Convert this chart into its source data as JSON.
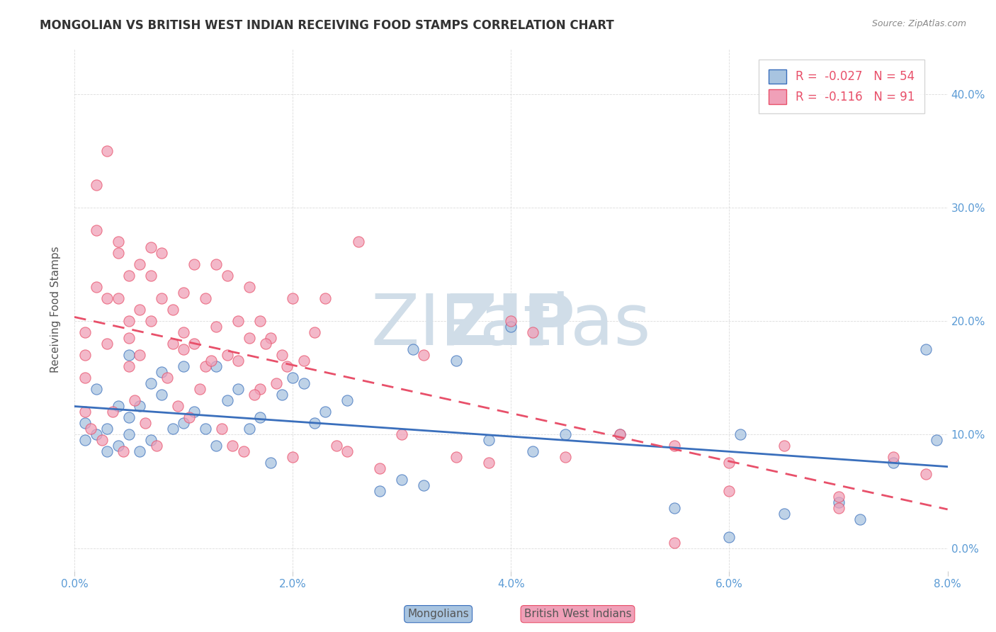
{
  "title": "MONGOLIAN VS BRITISH WEST INDIAN RECEIVING FOOD STAMPS CORRELATION CHART",
  "source": "Source: ZipAtlas.com",
  "xlabel_ticks": [
    "0.0%",
    "2.0%",
    "4.0%",
    "6.0%",
    "8.0%"
  ],
  "xlabel_vals": [
    0.0,
    2.0,
    4.0,
    6.0,
    8.0
  ],
  "ylabel": "Receiving Food Stamps",
  "ylabel_ticks_right": [
    "0.0%",
    "10.0%",
    "20.0%",
    "30.0%",
    "40.0%"
  ],
  "ylabel_vals_right": [
    0.0,
    10.0,
    20.0,
    30.0,
    40.0
  ],
  "xlim": [
    0.0,
    8.0
  ],
  "ylim": [
    -2.0,
    44.0
  ],
  "mongolian_R": -0.027,
  "mongolian_N": 54,
  "bwi_R": -0.116,
  "bwi_N": 91,
  "mongolian_color": "#a8c4e0",
  "bwi_color": "#f0a0b8",
  "mongolian_line_color": "#3a6fbc",
  "bwi_line_color": "#e8506a",
  "grid_color": "#cccccc",
  "title_color": "#333333",
  "axis_label_color": "#5b9bd5",
  "legend_box_color_mongolian": "#a8c4e0",
  "legend_box_color_bwi": "#f0a0b8",
  "watermark_color": "#d0dde8",
  "mongolian_x": [
    0.1,
    0.1,
    0.2,
    0.2,
    0.3,
    0.3,
    0.4,
    0.4,
    0.5,
    0.5,
    0.5,
    0.6,
    0.6,
    0.7,
    0.7,
    0.8,
    0.8,
    0.9,
    1.0,
    1.0,
    1.1,
    1.2,
    1.3,
    1.3,
    1.4,
    1.5,
    1.6,
    1.7,
    1.8,
    1.9,
    2.0,
    2.1,
    2.2,
    2.3,
    2.5,
    2.8,
    3.0,
    3.1,
    3.2,
    3.5,
    3.8,
    4.0,
    4.2,
    4.5,
    5.0,
    5.5,
    6.0,
    6.1,
    6.5,
    7.0,
    7.2,
    7.5,
    7.8,
    7.9
  ],
  "mongolian_y": [
    9.5,
    11.0,
    10.0,
    14.0,
    8.5,
    10.5,
    9.0,
    12.5,
    10.0,
    11.5,
    17.0,
    8.5,
    12.5,
    9.5,
    14.5,
    13.5,
    15.5,
    10.5,
    11.0,
    16.0,
    12.0,
    10.5,
    9.0,
    16.0,
    13.0,
    14.0,
    10.5,
    11.5,
    7.5,
    13.5,
    15.0,
    14.5,
    11.0,
    12.0,
    13.0,
    5.0,
    6.0,
    17.5,
    5.5,
    16.5,
    9.5,
    19.5,
    8.5,
    10.0,
    10.0,
    3.5,
    1.0,
    10.0,
    3.0,
    4.0,
    2.5,
    7.5,
    17.5,
    9.5
  ],
  "bwi_x": [
    0.1,
    0.1,
    0.1,
    0.1,
    0.2,
    0.2,
    0.2,
    0.3,
    0.3,
    0.3,
    0.4,
    0.4,
    0.4,
    0.5,
    0.5,
    0.5,
    0.5,
    0.6,
    0.6,
    0.6,
    0.7,
    0.7,
    0.7,
    0.8,
    0.8,
    0.9,
    0.9,
    1.0,
    1.0,
    1.0,
    1.1,
    1.1,
    1.2,
    1.2,
    1.3,
    1.3,
    1.4,
    1.4,
    1.5,
    1.5,
    1.6,
    1.6,
    1.7,
    1.7,
    1.8,
    1.9,
    2.0,
    2.0,
    2.1,
    2.2,
    2.3,
    2.4,
    2.5,
    2.6,
    2.8,
    3.0,
    3.2,
    3.5,
    3.8,
    4.0,
    4.2,
    4.5,
    5.0,
    5.5,
    5.5,
    6.0,
    6.0,
    6.5,
    7.0,
    7.0,
    7.5,
    7.8,
    0.15,
    0.25,
    0.35,
    0.45,
    0.55,
    0.65,
    0.75,
    0.85,
    0.95,
    1.05,
    1.15,
    1.25,
    1.35,
    1.45,
    1.55,
    1.65,
    1.75,
    1.85,
    1.95
  ],
  "bwi_y": [
    17.0,
    19.0,
    15.0,
    12.0,
    28.0,
    32.0,
    23.0,
    35.0,
    22.0,
    18.0,
    26.0,
    22.0,
    27.0,
    20.0,
    16.0,
    24.0,
    18.5,
    25.0,
    21.0,
    17.0,
    26.5,
    24.0,
    20.0,
    22.0,
    26.0,
    18.0,
    21.0,
    19.0,
    17.5,
    22.5,
    25.0,
    18.0,
    16.0,
    22.0,
    19.5,
    25.0,
    24.0,
    17.0,
    20.0,
    16.5,
    18.5,
    23.0,
    14.0,
    20.0,
    18.5,
    17.0,
    22.0,
    8.0,
    16.5,
    19.0,
    22.0,
    9.0,
    8.5,
    27.0,
    7.0,
    10.0,
    17.0,
    8.0,
    7.5,
    20.0,
    19.0,
    8.0,
    10.0,
    9.0,
    0.5,
    7.5,
    5.0,
    9.0,
    3.5,
    4.5,
    8.0,
    6.5,
    10.5,
    9.5,
    12.0,
    8.5,
    13.0,
    11.0,
    9.0,
    15.0,
    12.5,
    11.5,
    14.0,
    16.5,
    10.5,
    9.0,
    8.5,
    13.5,
    18.0,
    14.5,
    16.0
  ]
}
